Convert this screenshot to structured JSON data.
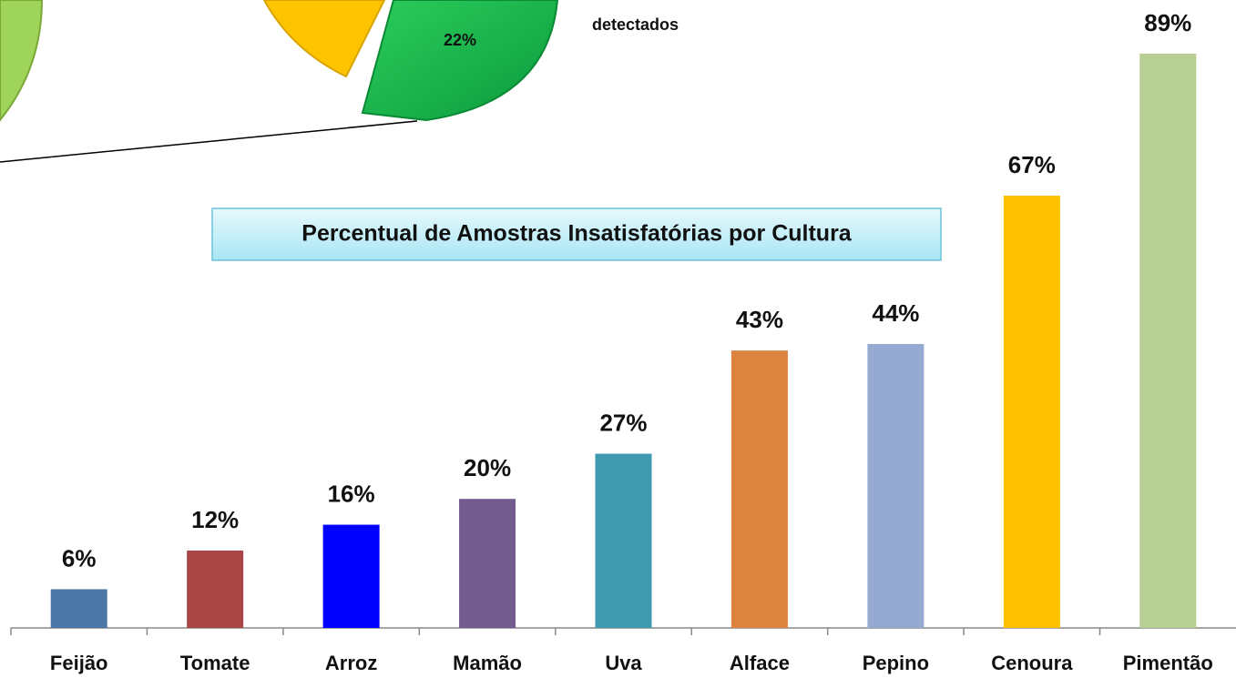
{
  "chart_data": [
    {
      "type": "pie",
      "values": [
        22
      ],
      "value_labels": [
        "22%"
      ],
      "colors": [
        "#12b34a"
      ],
      "annotation": "detectados"
    },
    {
      "type": "bar",
      "title": "Percentual de Amostras Insatisfatórias por Cultura",
      "categories": [
        "Feijão",
        "Tomate",
        "Arroz",
        "Mamão",
        "Uva",
        "Alface",
        "Pepino",
        "Cenoura",
        "Pimentão"
      ],
      "values": [
        6,
        12,
        16,
        20,
        27,
        43,
        44,
        67,
        89
      ],
      "value_labels": [
        "6%",
        "12%",
        "16%",
        "20%",
        "27%",
        "43%",
        "44%",
        "67%",
        "89%"
      ],
      "colors": [
        "#4a76a8",
        "#a84646",
        "#0000ff",
        "#735a8f",
        "#3f9ab0",
        "#dc8340",
        "#95a9d1",
        "#ffc000",
        "#b7ce94"
      ],
      "ylim": [
        0,
        100
      ]
    }
  ]
}
